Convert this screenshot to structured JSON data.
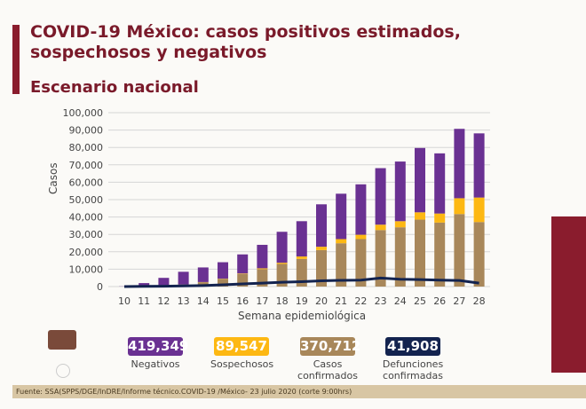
{
  "title": "COVID-19 México: casos positivos estimados, sospechosos y negativos",
  "subtitle": "Escenario nacional",
  "summary": [
    {
      "value": "419,349",
      "label": "Negativos",
      "color": "#6a3192"
    },
    {
      "value": "89,547",
      "label": "Sospechosos",
      "color": "#fdb813"
    },
    {
      "value": "370,712",
      "label": "Casos confirmados",
      "color": "#a8875a"
    },
    {
      "value": "41,908",
      "label": "Defunciones confirmadas",
      "color": "#13234f"
    }
  ],
  "footer": "Fuente: SSA(SPPS/DGE/InDRE/Informe técnico.COVID-19 /México- 23 julio 2020 (corte 9:00hrs)",
  "chart_data": {
    "type": "bar",
    "stacked": true,
    "xlabel": "Semana epidemiológica",
    "ylabel": "Casos",
    "ylim": [
      0,
      100000
    ],
    "yticks": [
      "0",
      "10,000",
      "20,000",
      "30,000",
      "40,000",
      "50,000",
      "60,000",
      "70,000",
      "80,000",
      "90,000",
      "100,000"
    ],
    "grid": true,
    "categories": [
      "10",
      "11",
      "12",
      "13",
      "14",
      "15",
      "16",
      "17",
      "18",
      "19",
      "20",
      "21",
      "22",
      "23",
      "24",
      "25",
      "26",
      "27",
      "28"
    ],
    "series": [
      {
        "name": "Casos confirmados",
        "color": "#a8875a",
        "values": [
          0,
          200,
          500,
          1200,
          2500,
          4500,
          7200,
          10000,
          13000,
          15900,
          21000,
          24900,
          27300,
          32500,
          34100,
          38500,
          36800,
          41700,
          37100
        ]
      },
      {
        "name": "Sospechosos",
        "color": "#fdb813",
        "values": [
          0,
          0,
          0,
          0,
          100,
          100,
          300,
          500,
          700,
          1400,
          1900,
          2400,
          2500,
          3100,
          3500,
          4200,
          5200,
          9100,
          14100
        ]
      },
      {
        "name": "Negativos",
        "color": "#6a3192",
        "values": [
          100,
          1800,
          4500,
          7300,
          8400,
          9400,
          11000,
          13500,
          17800,
          20300,
          24400,
          26100,
          29000,
          32500,
          34300,
          37000,
          34600,
          39900,
          36900
        ]
      },
      {
        "name": "Defunciones confirmadas",
        "type": "line",
        "color": "#13234f",
        "values": [
          0,
          100,
          200,
          400,
          600,
          1000,
          1500,
          2000,
          2500,
          2800,
          3300,
          3600,
          3700,
          4900,
          4200,
          4000,
          3700,
          3500,
          2000
        ]
      }
    ]
  }
}
